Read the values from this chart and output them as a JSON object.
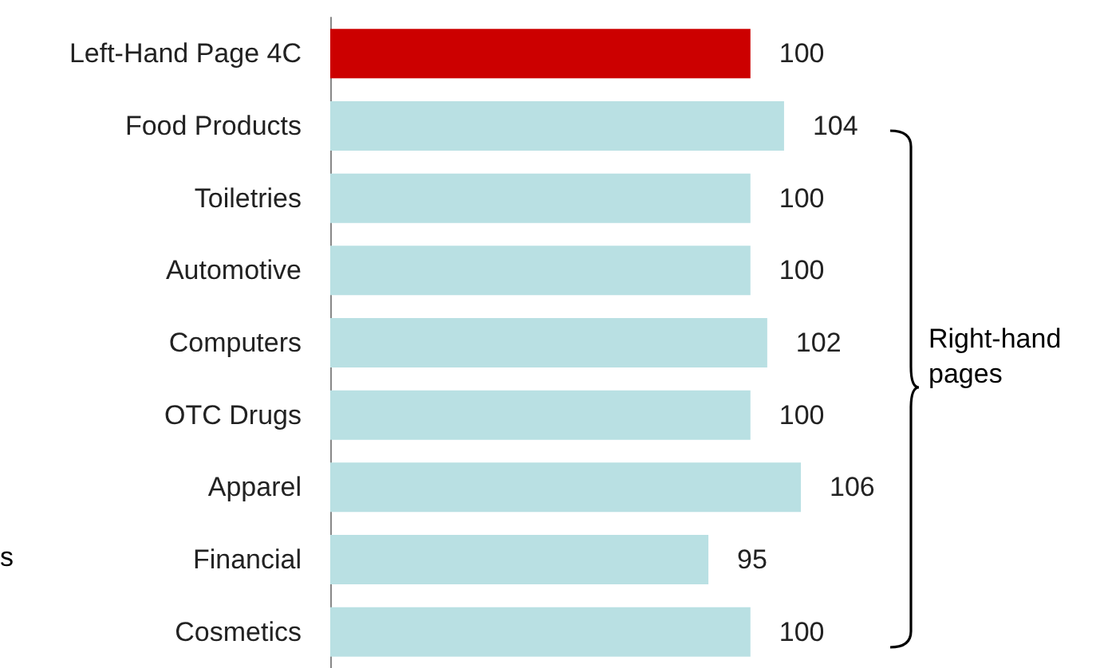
{
  "chart_data": {
    "type": "bar",
    "orientation": "horizontal",
    "categories": [
      "Left-Hand Page 4C",
      "Food Products",
      "Toiletries",
      "Automotive",
      "Computers",
      "OTC Drugs",
      "Apparel",
      "Financial",
      "Cosmetics"
    ],
    "values": [
      100,
      104,
      100,
      100,
      102,
      100,
      106,
      95,
      100
    ],
    "colors": [
      "#cc0000",
      "#b9e0e3",
      "#b9e0e3",
      "#b9e0e3",
      "#b9e0e3",
      "#b9e0e3",
      "#b9e0e3",
      "#b9e0e3",
      "#b9e0e3"
    ],
    "xlim": [
      50,
      106
    ],
    "data_labels": true,
    "annotations": [
      "Right-hand pages",
      "s"
    ]
  }
}
